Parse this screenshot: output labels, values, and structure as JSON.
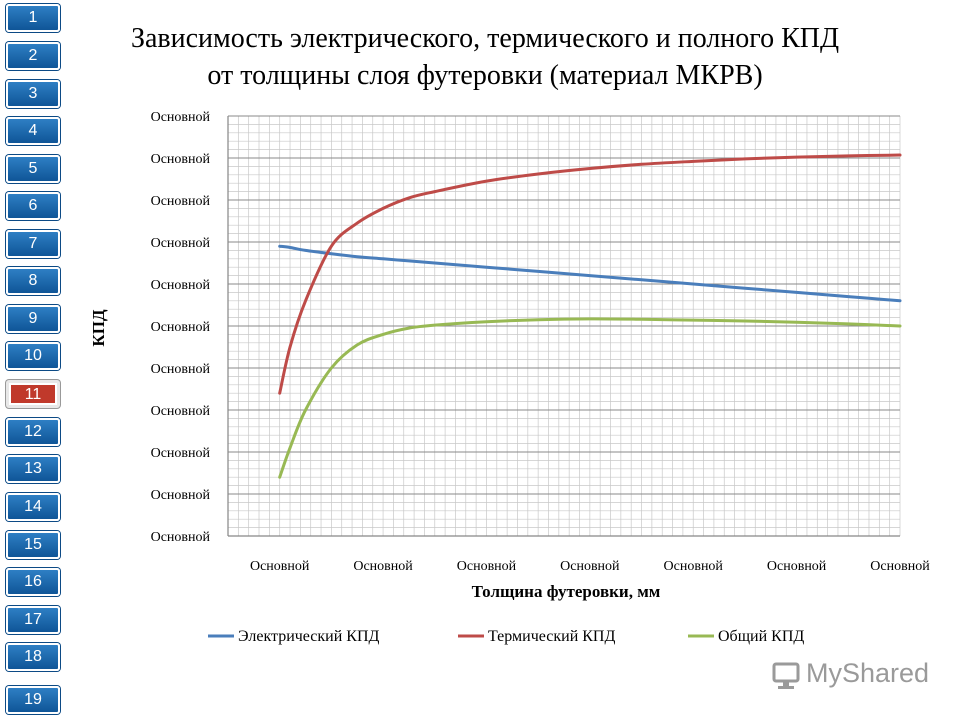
{
  "nav": {
    "items": [
      "1",
      "2",
      "3",
      "4",
      "5",
      "6",
      "7",
      "8",
      "9",
      "10",
      "11",
      "12",
      "13",
      "14",
      "15",
      "16",
      "17",
      "18",
      "19"
    ],
    "active": "11",
    "colors": {
      "button": "#1565a8",
      "active": "#c0392b"
    }
  },
  "title": {
    "line1": "Зависимость электрического, термического и полного КПД",
    "line2": "от толщины слоя футеровки (материал МКРВ)"
  },
  "watermark": {
    "text": "MyShared",
    "icon": "monitor-icon"
  },
  "chart_data": {
    "type": "line",
    "title": "Зависимость электрического, термического и полного КПД от толщины слоя футеровки (материал МКРВ)",
    "xlabel": "Толщина футеровки, мм",
    "ylabel": "КПД",
    "x_tick_labels": [
      "Основной",
      "Основной",
      "Основной",
      "Основной",
      "Основной",
      "Основной",
      "Основной"
    ],
    "y_tick_labels": [
      "Основной",
      "Основной",
      "Основной",
      "Основной",
      "Основной",
      "Основной",
      "Основной",
      "Основной",
      "Основной",
      "Основной",
      "Основной"
    ],
    "xlim": [
      0,
      6.5
    ],
    "ylim": [
      0,
      10
    ],
    "grid": true,
    "legend": "bottom",
    "x": [
      0.5,
      0.6,
      0.75,
      1.0,
      1.25,
      1.5,
      1.75,
      2.0,
      2.5,
      3.0,
      3.5,
      4.0,
      4.5,
      5.0,
      5.5,
      6.0,
      6.5
    ],
    "series": [
      {
        "name": "Электрический КПД",
        "color": "#4a7ebb",
        "values": [
          6.9,
          6.87,
          6.8,
          6.72,
          6.65,
          6.6,
          6.55,
          6.5,
          6.4,
          6.3,
          6.2,
          6.1,
          6.0,
          5.9,
          5.8,
          5.7,
          5.6
        ]
      },
      {
        "name": "Термический КПД",
        "color": "#be4b48",
        "values": [
          3.4,
          4.5,
          5.6,
          6.9,
          7.45,
          7.8,
          8.05,
          8.2,
          8.45,
          8.62,
          8.75,
          8.85,
          8.92,
          8.98,
          9.02,
          9.05,
          9.07
        ]
      },
      {
        "name": "Общий КПД",
        "color": "#98b954",
        "values": [
          1.4,
          2.1,
          3.0,
          4.0,
          4.55,
          4.8,
          4.95,
          5.02,
          5.1,
          5.15,
          5.17,
          5.16,
          5.14,
          5.12,
          5.09,
          5.05,
          5.0
        ]
      }
    ]
  }
}
